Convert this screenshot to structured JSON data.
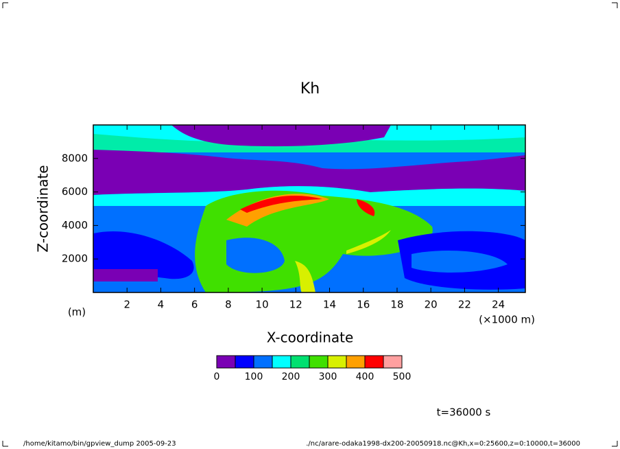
{
  "chart_data": {
    "type": "contour",
    "title": "Kh",
    "x_label": "X-coordinate",
    "y_label": "Z-coordinate",
    "x_unit": "(×1000 m)",
    "y_unit": "(m)",
    "xlim": [
      0,
      25.6
    ],
    "xticks": [
      2,
      4,
      6,
      8,
      10,
      12,
      14,
      16,
      18,
      20,
      22,
      24
    ],
    "ylim": [
      0,
      10000
    ],
    "yticks": [
      2000,
      4000,
      6000,
      8000
    ],
    "levels": [
      0,
      50,
      100,
      150,
      200,
      250,
      300,
      350,
      400,
      450,
      500
    ],
    "level_ticks": [
      0,
      100,
      200,
      300,
      400,
      500
    ],
    "colors": [
      "#7a00b4",
      "#0000ff",
      "#0070ff",
      "#00ffff",
      "#00e070",
      "#40e000",
      "#d8f000",
      "#ffa000",
      "#ff0000",
      "#ffa0a0"
    ],
    "annotation": "t=36000 s",
    "footer_left": "/home/kitamo/bin/gpview_dump  2005-09-23",
    "footer_right": "./nc/arare-odaka1998-dx200-20050918.nc@Kh,x=0:25600,z=0:10000,t=36000"
  }
}
